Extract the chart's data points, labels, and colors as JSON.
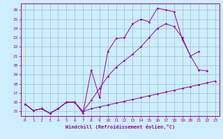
{
  "xlabel": "Windchill (Refroidissement éolien,°C)",
  "bg_color": "#cceeff",
  "line_color": "#990099",
  "grid_color": "#99bbcc",
  "xmin": -0.5,
  "xmax": 23.5,
  "ymin": 14.5,
  "ymax": 26.7,
  "yticks": [
    15,
    16,
    17,
    18,
    19,
    20,
    21,
    22,
    23,
    24,
    25,
    26
  ],
  "xticks": [
    0,
    1,
    2,
    3,
    4,
    5,
    6,
    7,
    8,
    9,
    10,
    11,
    12,
    13,
    14,
    15,
    16,
    17,
    18,
    19,
    20,
    21,
    22,
    23
  ],
  "line1_x": [
    0,
    1,
    2,
    3,
    4,
    5,
    6,
    7,
    8,
    9,
    10,
    11,
    12,
    13,
    14,
    15,
    16,
    17,
    18,
    19,
    20,
    21,
    22
  ],
  "line1_y": [
    15.8,
    15.1,
    15.3,
    14.8,
    15.3,
    16.0,
    16.0,
    14.8,
    19.5,
    16.5,
    21.5,
    22.9,
    23.0,
    24.5,
    25.0,
    24.7,
    26.2,
    26.0,
    25.8,
    22.8,
    21.0,
    19.5,
    19.4
  ],
  "line2_x": [
    0,
    1,
    2,
    3,
    4,
    5,
    6,
    7,
    8,
    9,
    10,
    11,
    12,
    13,
    14,
    15,
    16,
    17,
    18,
    19,
    20,
    21
  ],
  "line2_y": [
    15.8,
    15.1,
    15.3,
    14.8,
    15.3,
    16.0,
    16.0,
    15.0,
    16.2,
    17.5,
    18.8,
    19.8,
    20.5,
    21.2,
    22.0,
    23.0,
    24.0,
    24.5,
    24.2,
    23.0,
    21.0,
    21.5
  ],
  "line3_x": [
    0,
    1,
    2,
    3,
    4,
    5,
    6,
    7,
    8,
    9,
    10,
    11,
    12,
    13,
    14,
    15,
    16,
    17,
    18,
    19,
    20,
    21,
    22,
    23
  ],
  "line3_y": [
    15.8,
    15.1,
    15.3,
    14.8,
    15.3,
    16.0,
    16.0,
    15.0,
    15.3,
    15.5,
    15.7,
    15.9,
    16.1,
    16.3,
    16.5,
    16.7,
    16.9,
    17.1,
    17.3,
    17.5,
    17.7,
    17.9,
    18.1,
    18.3
  ]
}
